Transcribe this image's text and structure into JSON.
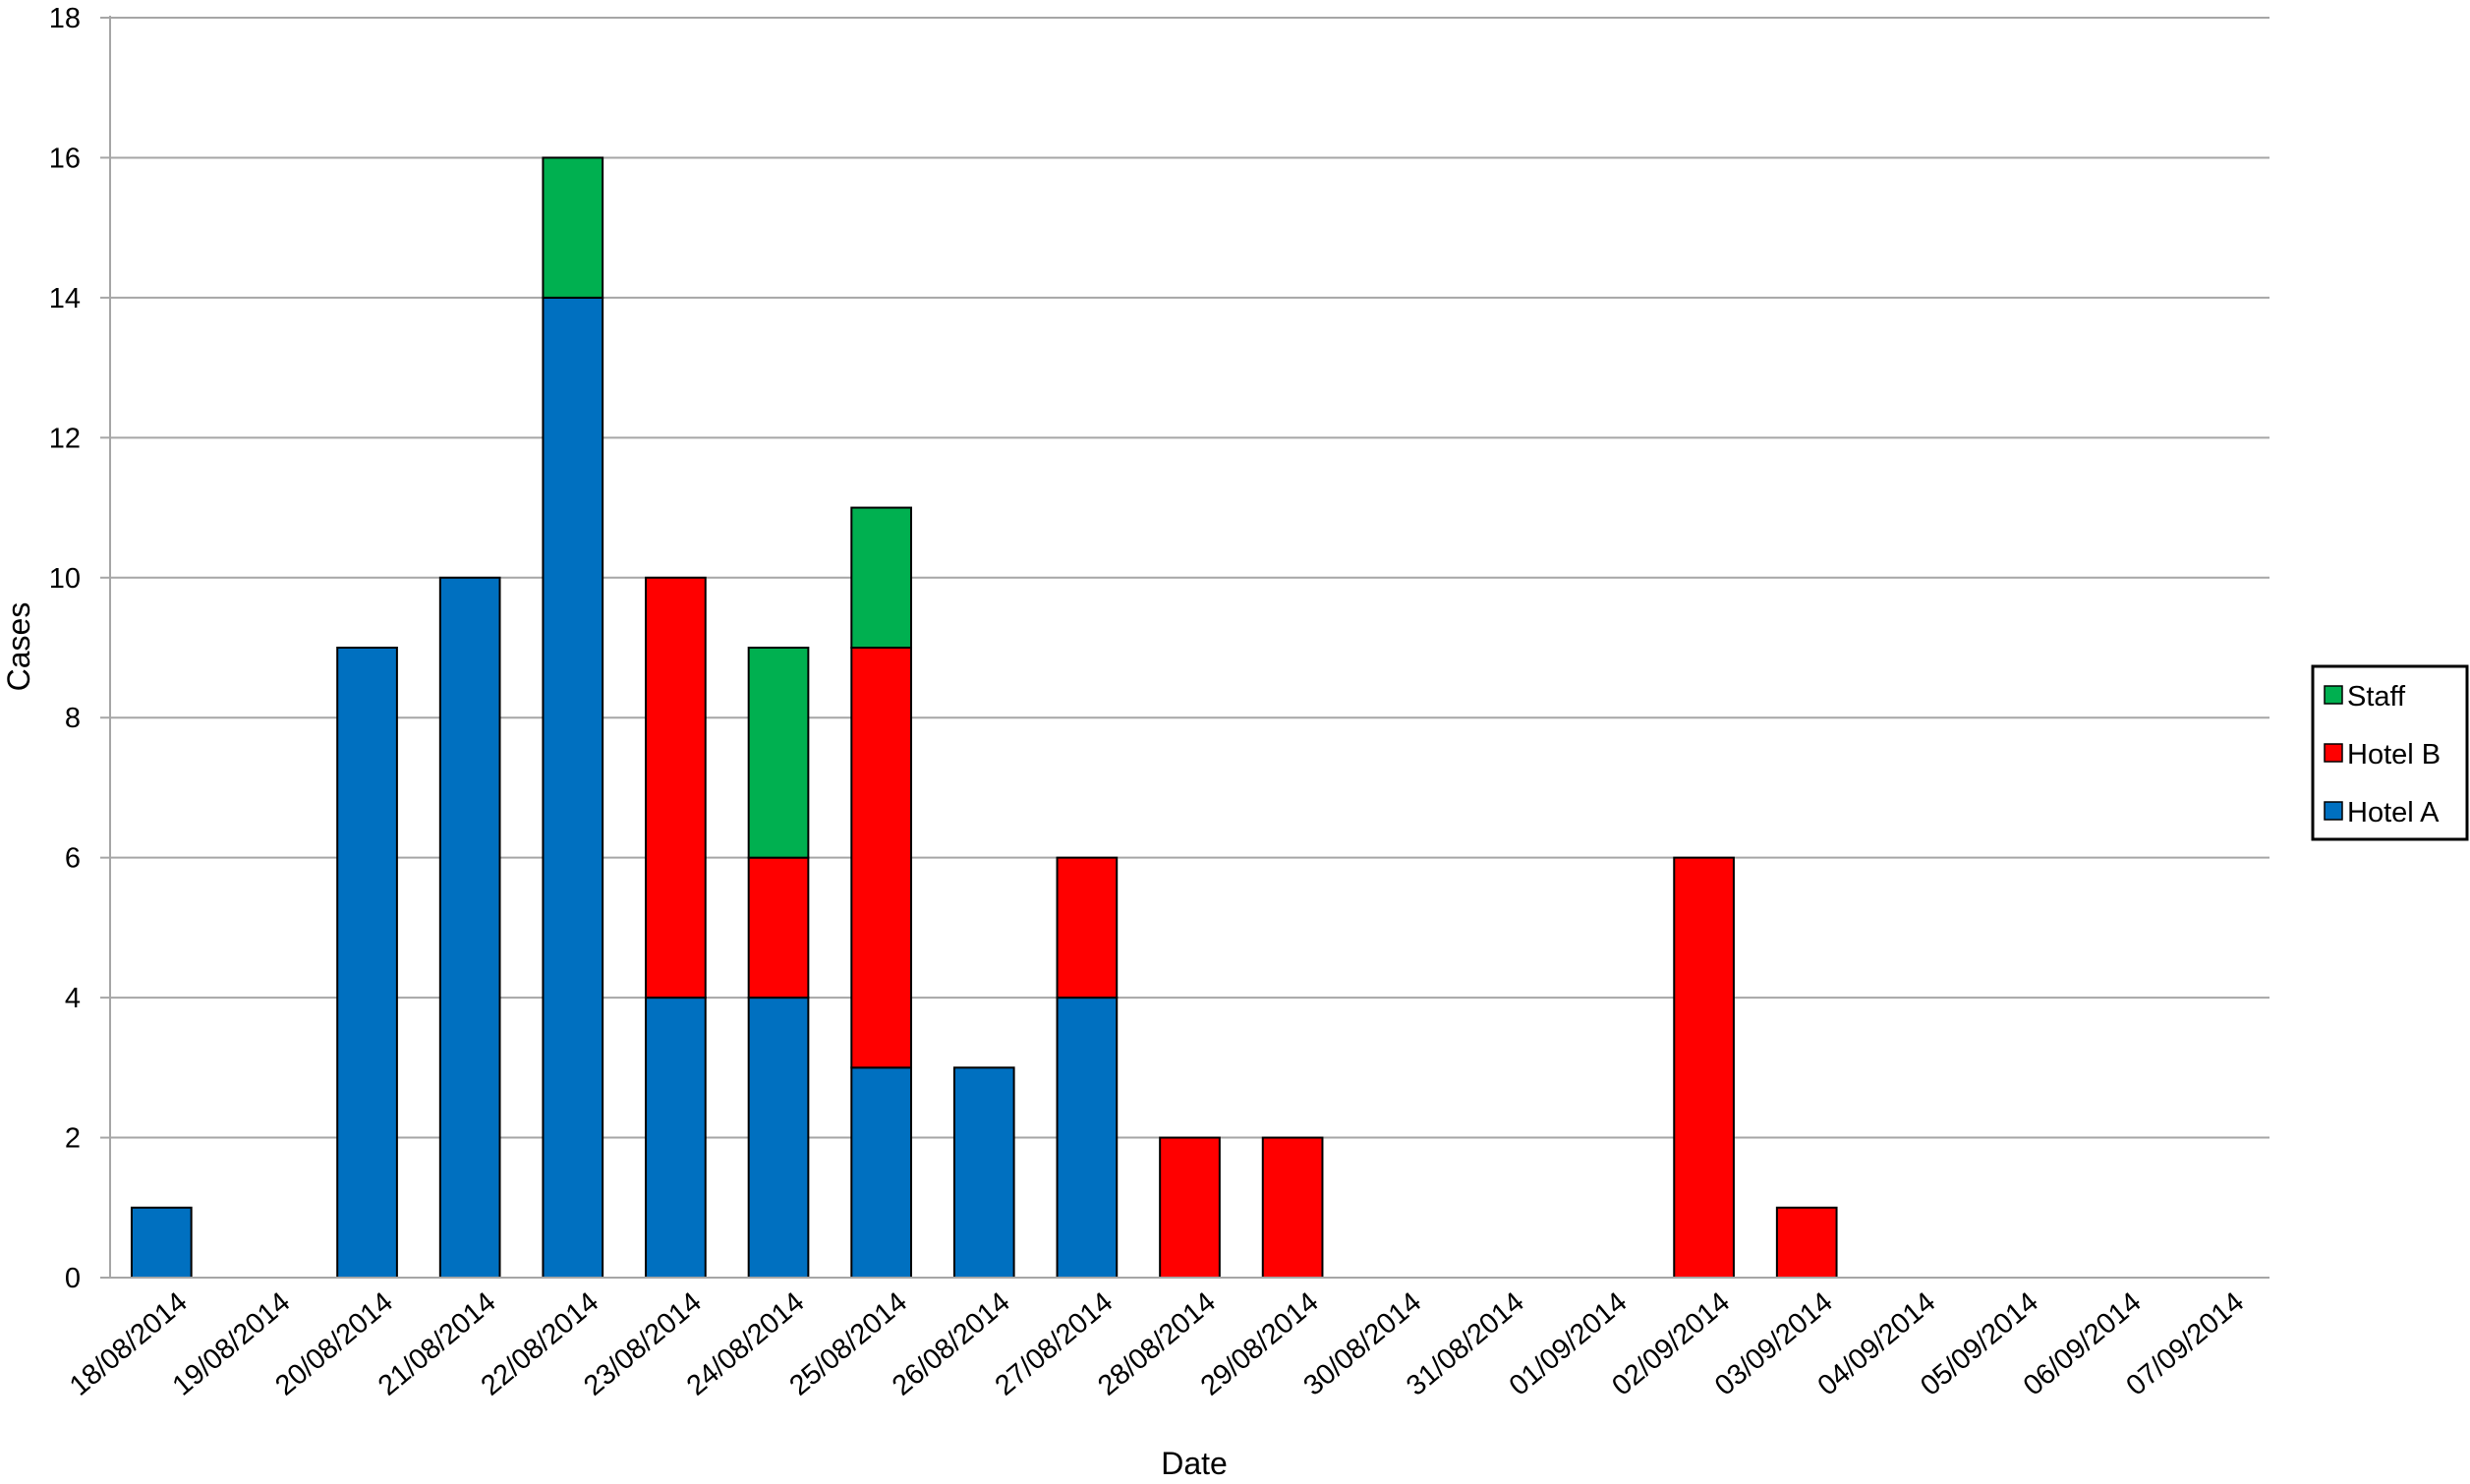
{
  "chart_data": {
    "type": "bar",
    "stacked": true,
    "title": "",
    "xlabel": "Date",
    "ylabel": "Cases",
    "ylim": [
      0,
      18
    ],
    "yticks": [
      0,
      2,
      4,
      6,
      8,
      10,
      12,
      14,
      16,
      18
    ],
    "grid": true,
    "legend_position": "right",
    "categories": [
      "18/08/2014",
      "19/08/2014",
      "20/08/2014",
      "21/08/2014",
      "22/08/2014",
      "23/08/2014",
      "24/08/2014",
      "25/08/2014",
      "26/08/2014",
      "27/08/2014",
      "28/08/2014",
      "29/08/2014",
      "30/08/2014",
      "31/08/2014",
      "01/09/2014",
      "02/09/2014",
      "03/09/2014",
      "04/09/2014",
      "05/09/2014",
      "06/09/2014",
      "07/09/2014"
    ],
    "series": [
      {
        "name": "Hotel A",
        "color": "#0070c0",
        "values": [
          1,
          0,
          9,
          10,
          14,
          4,
          4,
          3,
          3,
          4,
          0,
          0,
          0,
          0,
          0,
          0,
          0,
          0,
          0,
          0,
          0
        ]
      },
      {
        "name": "Hotel B",
        "color": "#ff0000",
        "values": [
          0,
          0,
          0,
          0,
          0,
          6,
          2,
          6,
          0,
          2,
          2,
          2,
          0,
          0,
          0,
          6,
          1,
          0,
          0,
          0,
          0
        ]
      },
      {
        "name": "Staff",
        "color": "#00b050",
        "values": [
          0,
          0,
          0,
          0,
          2,
          0,
          3,
          2,
          0,
          0,
          0,
          0,
          0,
          0,
          0,
          0,
          0,
          0,
          0,
          0,
          0
        ]
      }
    ],
    "legend_order": [
      "Staff",
      "Hotel B",
      "Hotel A"
    ],
    "colors": {
      "gridline": "#a6a6a6",
      "axis": "#a6a6a6",
      "bar_outline": "#000000"
    }
  }
}
